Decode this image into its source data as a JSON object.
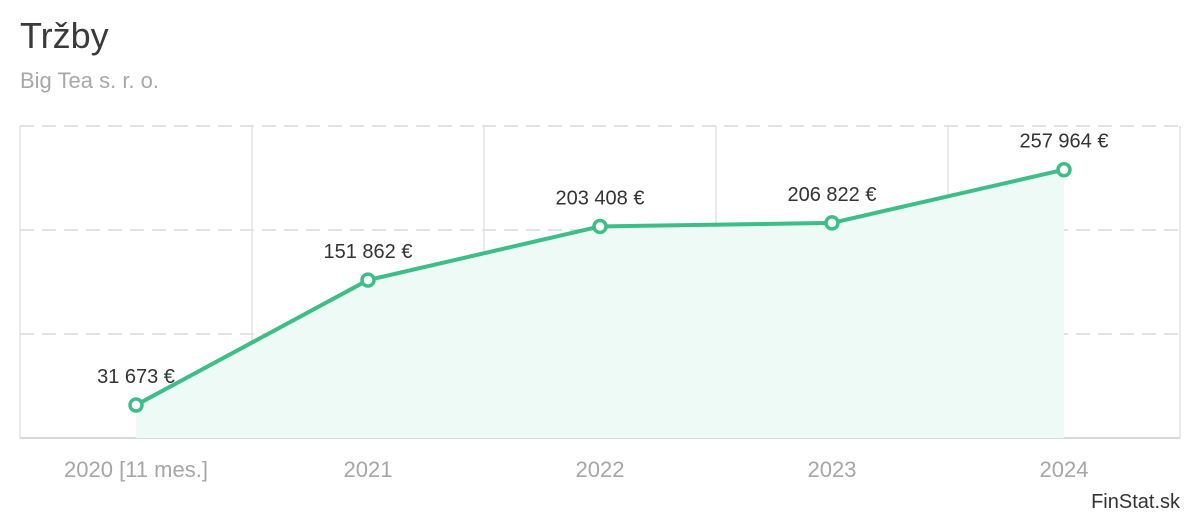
{
  "header": {
    "title": "Tržby",
    "subtitle": "Big Tea s. r. o."
  },
  "credit": "FinStat.sk",
  "colors": {
    "line": "#3dbd87",
    "area": "#eefaf5",
    "grid": "#e3e3e3",
    "axis_text": "#a6a6a6",
    "label_text": "#333333"
  },
  "chart_data": {
    "type": "area",
    "title": "Tržby",
    "subtitle": "Big Tea s. r. o.",
    "categories": [
      "2020 [11 mes.]",
      "2021",
      "2022",
      "2023",
      "2024"
    ],
    "series": [
      {
        "values": [
          31673,
          151862,
          203408,
          206822,
          257964
        ],
        "labels": [
          "31 673 €",
          "151 862 €",
          "203 408 €",
          "206 822 €",
          "257 964 €"
        ]
      }
    ],
    "ylim": [
      0,
      300000
    ],
    "y_gridlines": [
      100000,
      200000,
      300000
    ],
    "grid": true,
    "legend": "none"
  }
}
